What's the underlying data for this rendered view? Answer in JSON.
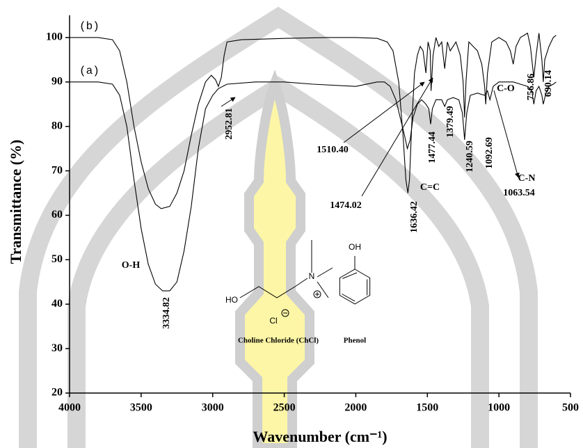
{
  "chart_data": {
    "type": "line",
    "x_label": "Wavenumber (cm⁻¹)",
    "y_label": "Transmittance (%)",
    "xlim": [
      4000,
      500
    ],
    "xticks": [
      4000,
      3500,
      3000,
      2500,
      2000,
      1500,
      1000,
      500
    ],
    "ylim": [
      20,
      105
    ],
    "yticks": [
      20,
      30,
      40,
      50,
      60,
      70,
      80,
      90,
      100
    ],
    "series": [
      {
        "name": "(b)",
        "color": "#000000",
        "x": [
          4000,
          3800,
          3700,
          3650,
          3600,
          3550,
          3500,
          3450,
          3400,
          3360,
          3300,
          3250,
          3200,
          3150,
          3100,
          3050,
          3010,
          2980,
          2960,
          2940,
          2920,
          2900,
          2800,
          2500,
          2200,
          2000,
          1850,
          1780,
          1740,
          1700,
          1670,
          1650,
          1636,
          1625,
          1610,
          1590,
          1570,
          1550,
          1530,
          1510,
          1495,
          1480,
          1474,
          1460,
          1440,
          1420,
          1400,
          1379,
          1360,
          1340,
          1300,
          1270,
          1250,
          1240,
          1230,
          1210,
          1180,
          1150,
          1120,
          1100,
          1092,
          1080,
          1050,
          1000,
          950,
          920,
          900,
          880,
          850,
          800,
          780,
          756,
          740,
          720,
          700,
          690,
          680,
          650,
          620,
          600
        ],
        "values": [
          100,
          100,
          99.5,
          97,
          90,
          80,
          72,
          66,
          62.5,
          61.5,
          62,
          65,
          70,
          78,
          85,
          90,
          91.5,
          90.5,
          89,
          91,
          96,
          99,
          99.5,
          99.8,
          100,
          100,
          99.8,
          99,
          97,
          90,
          78,
          68,
          65,
          68,
          80,
          92,
          96,
          98,
          97,
          92,
          99,
          97,
          88,
          96,
          100,
          98,
          99,
          93,
          99,
          97,
          99,
          96,
          90,
          82,
          90,
          99,
          98,
          97,
          94,
          89,
          85,
          92,
          99,
          100,
          99,
          97,
          94,
          98,
          100,
          101,
          98,
          91,
          96,
          101,
          95,
          90,
          95,
          98,
          100,
          100.5
        ]
      },
      {
        "name": "(a)",
        "color": "#000000",
        "x": [
          4000,
          3800,
          3700,
          3650,
          3600,
          3550,
          3500,
          3450,
          3400,
          3350,
          3300,
          3250,
          3200,
          3150,
          3100,
          3050,
          3000,
          2960,
          2900,
          2700,
          2500,
          2300,
          2000,
          1850,
          1800,
          1760,
          1720,
          1690,
          1660,
          1640,
          1620,
          1600,
          1570,
          1540,
          1510,
          1490,
          1477,
          1465,
          1440,
          1400,
          1379,
          1360,
          1320,
          1280,
          1255,
          1240,
          1225,
          1200,
          1150,
          1100,
          1080,
          1063,
          1040,
          1000,
          950,
          900,
          850,
          800,
          770,
          756,
          740,
          720,
          700,
          690,
          675,
          650,
          620,
          600
        ],
        "values": [
          90,
          90,
          89.5,
          87,
          80,
          68,
          57,
          49,
          44.5,
          43,
          43,
          45,
          52,
          62,
          75,
          84,
          87,
          88.5,
          89.5,
          90,
          90,
          89.5,
          89,
          90,
          90,
          89,
          86,
          82,
          78,
          75,
          77,
          82,
          85,
          86,
          85,
          84,
          80.5,
          84,
          86,
          86,
          84.5,
          86,
          86.5,
          86,
          83,
          77,
          83,
          87,
          87.5,
          87,
          88,
          86,
          89,
          90,
          90,
          90,
          89.5,
          89,
          88,
          85,
          88,
          89,
          87,
          85,
          87,
          89,
          89.5,
          90
        ]
      }
    ],
    "annotations": [
      "O-H",
      "3334.82",
      "2952.81",
      "1510.40",
      "1474.02",
      "1636.42",
      "C=C",
      "1477.44",
      "1379.49",
      "1240.59",
      "1092.69",
      "C-O",
      "C-N",
      "1063.54",
      "756.86",
      "690.14"
    ],
    "structures": [
      {
        "caption": "Choline Chloride (ChCl)",
        "atoms": [
          "HO",
          "N",
          "Cl"
        ]
      },
      {
        "caption": "Phenol",
        "atoms": [
          "OH"
        ]
      }
    ]
  }
}
